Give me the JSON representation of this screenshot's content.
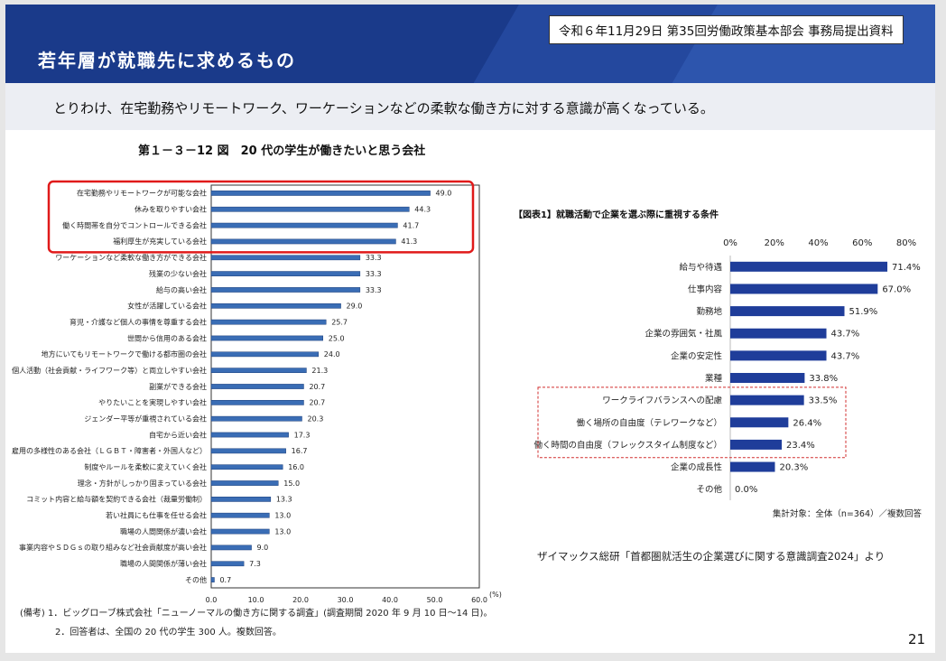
{
  "header": {
    "title": "若年層が就職先に求めるもの",
    "meta": "令和６年11月29日 第35回労働政策基本部会 事務局提出資料"
  },
  "subtitle": "とりわけ、在宅勤務やリモートワーク、ワーケーションなどの柔軟な働き方に対する意識が高くなっている。",
  "page_number": "21",
  "left_notes": {
    "line1": "(備考) 1．ビッグローブ株式会社「ニューノーマルの働き方に関する調査」(調査期間 2020 年 9 月 10 日～14 日)。",
    "line2": "2．回答者は、全国の 20 代の学生 300 人。複数回答。"
  },
  "right_notes": {
    "population": "集計対象：全体（n=364）／複数回答",
    "source": "ザイマックス総研「首都圏就活生の企業選びに関する意識調査2024」より"
  },
  "colors": {
    "banner": "#1a3a8a",
    "left_bar": "#3a6db5",
    "right_bar": "#1f3d9a",
    "highlight_box": "#e01a1a",
    "dashed_box": "#d22f2f"
  },
  "chart_data": [
    {
      "type": "bar",
      "orientation": "horizontal",
      "title": "第１－３－12 図　20 代の学生が働きたいと思う会社",
      "unit": "(%)",
      "xlim": [
        0,
        60
      ],
      "xticks": [
        "0.0",
        "10.0",
        "20.0",
        "30.0",
        "40.0",
        "50.0",
        "60.0"
      ],
      "grid": false,
      "highlighted_categories": [
        0,
        1,
        2,
        3
      ],
      "categories": [
        "在宅勤務やリモートワークが可能な会社",
        "休みを取りやすい会社",
        "働く時間帯を自分でコントロールできる会社",
        "福利厚生が充実している会社",
        "ワーケーションなど柔軟な働き方ができる会社",
        "残業の少ない会社",
        "給与の高い会社",
        "女性が活躍している会社",
        "育児・介護など個人の事情を尊重する会社",
        "世間から信用のある会社",
        "地方にいてもリモートワークで働ける都市圏の会社",
        "個人活動（社会貢献・ライフワーク等）と両立しやすい会社",
        "副業ができる会社",
        "やりたいことを実現しやすい会社",
        "ジェンダー平等が重視されている会社",
        "自宅から近い会社",
        "雇用の多様性のある会社（ＬＧＢＴ・障害者・外国人など）",
        "制度やルールを柔軟に変えていく会社",
        "理念・方針がしっかり固まっている会社",
        "コミット内容と給与額を契約できる会社（裁量労働制）",
        "若い社員にも仕事を任せる会社",
        "職場の人間関係が濃い会社",
        "事業内容やＳＤＧｓの取り組みなど社会貢献度が高い会社",
        "職場の人間関係が薄い会社",
        "その他"
      ],
      "values": [
        49.0,
        44.3,
        41.7,
        41.3,
        33.3,
        33.3,
        33.3,
        29.0,
        25.7,
        25.0,
        24.0,
        21.3,
        20.7,
        20.7,
        20.3,
        17.3,
        16.7,
        16.0,
        15.0,
        13.3,
        13.0,
        13.0,
        9.0,
        7.3,
        0.7
      ],
      "labels": [
        "49.0",
        "44.3",
        "41.7",
        "41.3",
        "33.3",
        "33.3",
        "33.3",
        "29.0",
        "25.7",
        "25.0",
        "24.0",
        "21.3",
        "20.7",
        "20.7",
        "20.3",
        "17.3",
        "16.7",
        "16.0",
        "15.0",
        "13.3",
        "13.0",
        "13.0",
        "9.0",
        "7.3",
        "0.7"
      ]
    },
    {
      "type": "bar",
      "orientation": "horizontal",
      "title": "【図表1】就職活動で企業を選ぶ際に重視する条件",
      "xlim": [
        0,
        80
      ],
      "xticks": [
        "0%",
        "20%",
        "40%",
        "60%",
        "80%"
      ],
      "grid": false,
      "dashed_categories": [
        6,
        7,
        8
      ],
      "categories": [
        "給与や待遇",
        "仕事内容",
        "勤務地",
        "企業の雰囲気・社風",
        "企業の安定性",
        "業種",
        "ワークライフバランスへの配慮",
        "働く場所の自由度（テレワークなど）",
        "働く時間の自由度（フレックスタイム制度など）",
        "企業の成長性",
        "その他"
      ],
      "values": [
        71.4,
        67.0,
        51.9,
        43.7,
        43.7,
        33.8,
        33.5,
        26.4,
        23.4,
        20.3,
        0.0
      ],
      "labels": [
        "71.4%",
        "67.0%",
        "51.9%",
        "43.7%",
        "43.7%",
        "33.8%",
        "33.5%",
        "26.4%",
        "23.4%",
        "20.3%",
        "0.0%"
      ]
    }
  ]
}
